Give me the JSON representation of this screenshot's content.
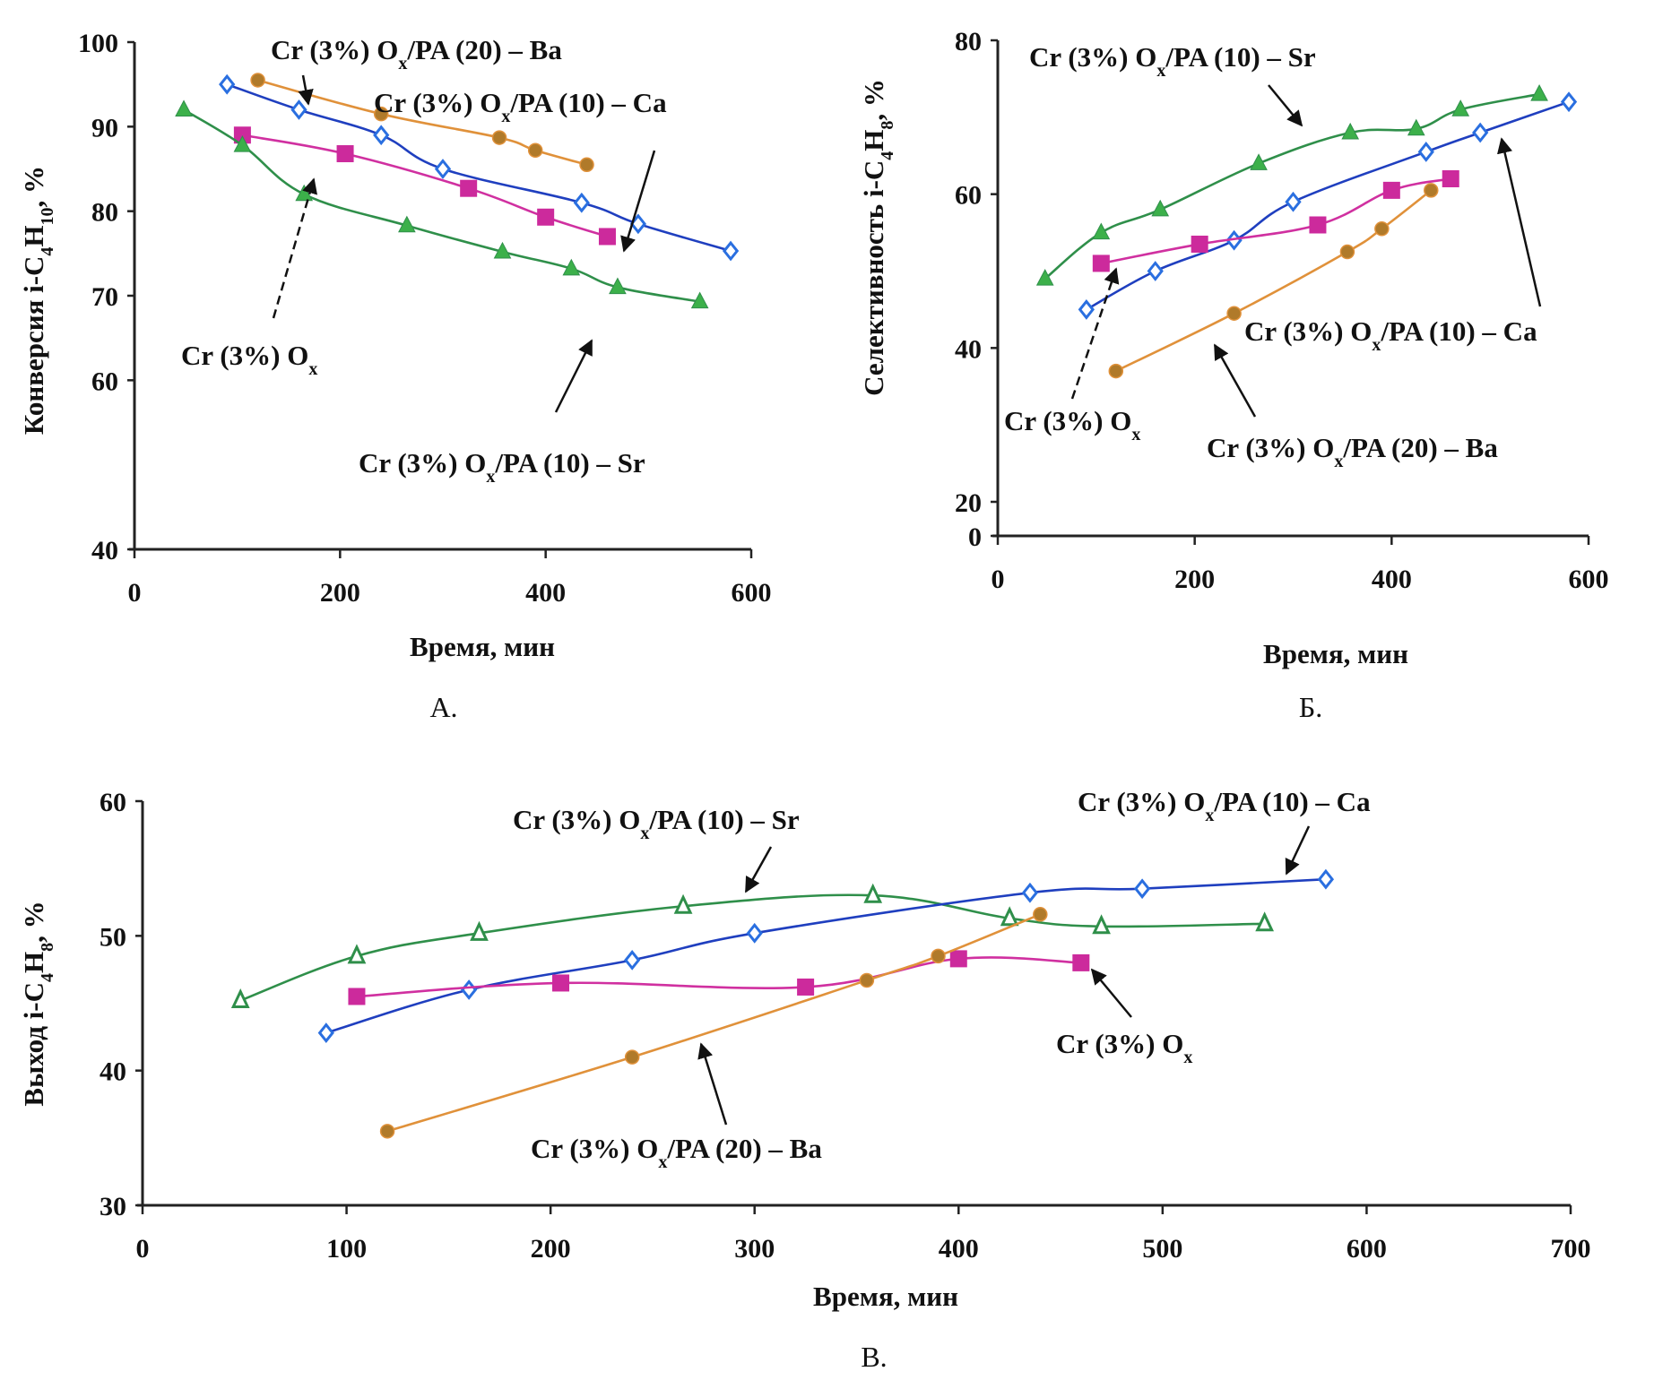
{
  "colors": {
    "Ca": "#1f3fbf",
    "Ca_marker": "#2a6fe0",
    "Ba": "#e0913a",
    "Ba_marker": "#b07a2a",
    "Sr": "#2f8f4a",
    "Sr_marker": "#3cb04a",
    "Cr": "#d030a0",
    "Cr_marker": "#cc2a9c"
  },
  "series_labels": {
    "Ca": "Cr (3%) Ox/PA (10) – Ca",
    "Ba": "Cr (3%) Ox/PA (20) – Ba",
    "Sr": "Cr (3%) Ox/PA (10) – Sr",
    "Cr": "Cr (3%) Ox"
  },
  "chart_data": [
    {
      "id": "A",
      "type": "line",
      "panel_label": "А.",
      "title": "",
      "xlabel": "Время, мин",
      "ylabel": "Конверсия i-C4H10, %",
      "xlim": [
        0,
        600
      ],
      "ylim": [
        40,
        100
      ],
      "xticks": [
        0,
        200,
        400,
        600
      ],
      "yticks": [
        40,
        60,
        70,
        80,
        90,
        100
      ],
      "grid": false,
      "series": [
        {
          "key": "Ba",
          "marker": "circle",
          "x": [
            120,
            240,
            355,
            390,
            440
          ],
          "y": [
            95.5,
            91.5,
            88.7,
            87.2,
            85.5
          ]
        },
        {
          "key": "Ca",
          "marker": "diamond",
          "x": [
            90,
            160,
            240,
            300,
            435,
            490,
            580
          ],
          "y": [
            95.0,
            92.0,
            89.0,
            85.0,
            81.0,
            78.5,
            75.3
          ]
        },
        {
          "key": "Cr",
          "marker": "square",
          "x": [
            105,
            205,
            325,
            400,
            460
          ],
          "y": [
            89.0,
            86.8,
            82.7,
            79.3,
            77.0
          ]
        },
        {
          "key": "Sr",
          "marker": "triangle",
          "x": [
            48,
            105,
            165,
            265,
            358,
            425,
            470,
            550
          ],
          "y": [
            92.0,
            87.8,
            82.0,
            78.3,
            75.2,
            73.2,
            71.0,
            69.3
          ]
        }
      ],
      "annotations": [
        {
          "series": "Ba",
          "text_parts": [
            "Cr (3%) O",
            "x",
            "/PA (20) – Ba"
          ]
        },
        {
          "series": "Ca",
          "text_parts": [
            "Cr (3%) O",
            "x",
            "/PA (10) – Ca"
          ]
        },
        {
          "series": "Cr",
          "text_parts": [
            "Cr (3%) O",
            "x",
            ""
          ]
        },
        {
          "series": "Sr",
          "text_parts": [
            "Cr (3%) O",
            "x",
            "/PA (10) – Sr"
          ]
        }
      ]
    },
    {
      "id": "B",
      "type": "line",
      "panel_label": "Б.",
      "title": "",
      "xlabel": "Время, мин",
      "ylabel": "Селективность i-C4H8, %",
      "xlim": [
        0,
        600
      ],
      "ylim": [
        0,
        80
      ],
      "xticks": [
        0,
        200,
        400,
        600
      ],
      "yticks": [
        0,
        20,
        40,
        60,
        80
      ],
      "grid": false,
      "series": [
        {
          "key": "Sr",
          "marker": "triangle",
          "x": [
            48,
            105,
            165,
            265,
            358,
            425,
            470,
            550
          ],
          "y": [
            49.0,
            55.0,
            58.0,
            64.0,
            68.0,
            68.5,
            71.0,
            73.0
          ]
        },
        {
          "key": "Ca",
          "marker": "diamond",
          "x": [
            90,
            160,
            240,
            300,
            435,
            490,
            580
          ],
          "y": [
            45.0,
            50.0,
            54.0,
            59.0,
            65.5,
            68.0,
            72.0
          ]
        },
        {
          "key": "Cr",
          "marker": "square",
          "x": [
            105,
            205,
            325,
            400,
            460
          ],
          "y": [
            51.0,
            53.5,
            56.0,
            60.5,
            62.0
          ]
        },
        {
          "key": "Ba",
          "marker": "circle",
          "x": [
            120,
            240,
            355,
            390,
            440
          ],
          "y": [
            37.0,
            44.5,
            52.5,
            55.5,
            60.5
          ]
        }
      ],
      "annotations": [
        {
          "series": "Sr",
          "text_parts": [
            "Cr (3%) O",
            "x",
            "/PA (10) – Sr"
          ]
        },
        {
          "series": "Ca",
          "text_parts": [
            "Cr (3%) O",
            "x",
            "/PA (10) – Ca"
          ]
        },
        {
          "series": "Cr",
          "text_parts": [
            "Cr (3%) O",
            "x",
            ""
          ]
        },
        {
          "series": "Ba",
          "text_parts": [
            "Cr (3%) O",
            "x",
            "/PA (20) – Ba"
          ]
        }
      ]
    },
    {
      "id": "C",
      "type": "line",
      "panel_label": "В.",
      "title": "",
      "xlabel": "Время, мин",
      "ylabel": "Выход i-C4H8, %",
      "xlim": [
        0,
        700
      ],
      "ylim": [
        30,
        60
      ],
      "xticks": [
        0,
        100,
        200,
        300,
        400,
        500,
        600,
        700
      ],
      "yticks": [
        30,
        40,
        50,
        60
      ],
      "grid": false,
      "series": [
        {
          "key": "Sr",
          "marker": "triangle-open",
          "x": [
            48,
            105,
            165,
            265,
            358,
            425,
            470,
            550
          ],
          "y": [
            45.2,
            48.5,
            50.2,
            52.2,
            53.0,
            51.3,
            50.7,
            50.9
          ]
        },
        {
          "key": "Ca",
          "marker": "diamond-open",
          "x": [
            90,
            160,
            240,
            300,
            435,
            490,
            580
          ],
          "y": [
            42.8,
            46.0,
            48.2,
            50.2,
            53.2,
            53.5,
            54.2
          ]
        },
        {
          "key": "Cr",
          "marker": "square",
          "x": [
            105,
            205,
            325,
            400,
            460
          ],
          "y": [
            45.5,
            46.5,
            46.2,
            48.3,
            48.0
          ]
        },
        {
          "key": "Ba",
          "marker": "circle",
          "x": [
            120,
            240,
            355,
            390,
            440
          ],
          "y": [
            35.5,
            41.0,
            46.7,
            48.5,
            51.6
          ]
        }
      ],
      "annotations": [
        {
          "series": "Sr",
          "text_parts": [
            "Cr (3%) O",
            "x",
            "/PA (10) – Sr"
          ]
        },
        {
          "series": "Ca",
          "text_parts": [
            "Cr (3%) O",
            "x",
            "/PA (10) – Ca"
          ]
        },
        {
          "series": "Cr",
          "text_parts": [
            "Cr (3%) O",
            "x",
            ""
          ]
        },
        {
          "series": "Ba",
          "text_parts": [
            "Cr (3%) O",
            "x",
            "/PA (20) – Ba"
          ]
        }
      ]
    }
  ]
}
